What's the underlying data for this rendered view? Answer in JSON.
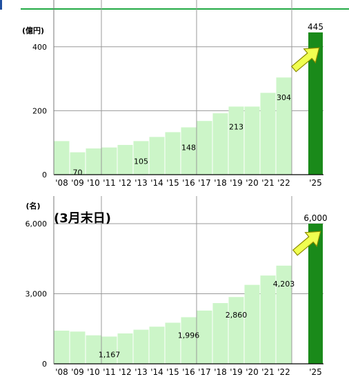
{
  "chart_data": [
    {
      "type": "bar",
      "unit_label": "(億円)",
      "categories": [
        "'08",
        "'09",
        "'10",
        "'11",
        "'12",
        "'13",
        "'14",
        "'15",
        "'16",
        "'17",
        "'18",
        "'19",
        "'20",
        "'21",
        "'22",
        "",
        "'25"
      ],
      "values": [
        105,
        70,
        82,
        85,
        93,
        105,
        118,
        133,
        148,
        168,
        192,
        213,
        213,
        256,
        304,
        null,
        445
      ],
      "yticks": [
        "0",
        "200",
        "400"
      ],
      "ytick_values": [
        0,
        200,
        400
      ],
      "ylim": [
        0,
        460
      ],
      "data_labels": [
        {
          "index": 1,
          "text": "70"
        },
        {
          "index": 5,
          "text": "105"
        },
        {
          "index": 8,
          "text": "148"
        },
        {
          "index": 11,
          "text": "213"
        },
        {
          "index": 14,
          "text": "304"
        },
        {
          "index": 16,
          "text": "445"
        }
      ],
      "target_index": 16,
      "colors": {
        "bar": "#ccf5c8",
        "target": "#1a8a1a",
        "grid": "#999999",
        "arrow": "#f0ff50"
      }
    },
    {
      "type": "bar",
      "unit_label": "(名)",
      "subtitle": "(3月末日)",
      "categories": [
        "'08",
        "'09",
        "'10",
        "'11",
        "'12",
        "'13",
        "'14",
        "'15",
        "'16",
        "'17",
        "'18",
        "'19",
        "'20",
        "'21",
        "'22",
        "",
        "'25"
      ],
      "values": [
        1420,
        1380,
        1220,
        1167,
        1300,
        1460,
        1590,
        1760,
        1996,
        2280,
        2600,
        2860,
        3380,
        3780,
        4203,
        null,
        6000
      ],
      "yticks": [
        "0",
        "3,000",
        "6,000"
      ],
      "ytick_values": [
        0,
        3000,
        6000
      ],
      "ylim": [
        0,
        6000
      ],
      "data_labels": [
        {
          "index": 3,
          "text": "1,167"
        },
        {
          "index": 8,
          "text": "1,996"
        },
        {
          "index": 11,
          "text": "2,860"
        },
        {
          "index": 14,
          "text": "4,203"
        },
        {
          "index": 16,
          "text": "6,000"
        }
      ],
      "target_index": 16,
      "colors": {
        "bar": "#ccf5c8",
        "target": "#1a8a1a",
        "grid": "#999999",
        "arrow": "#f0ff50"
      }
    }
  ]
}
